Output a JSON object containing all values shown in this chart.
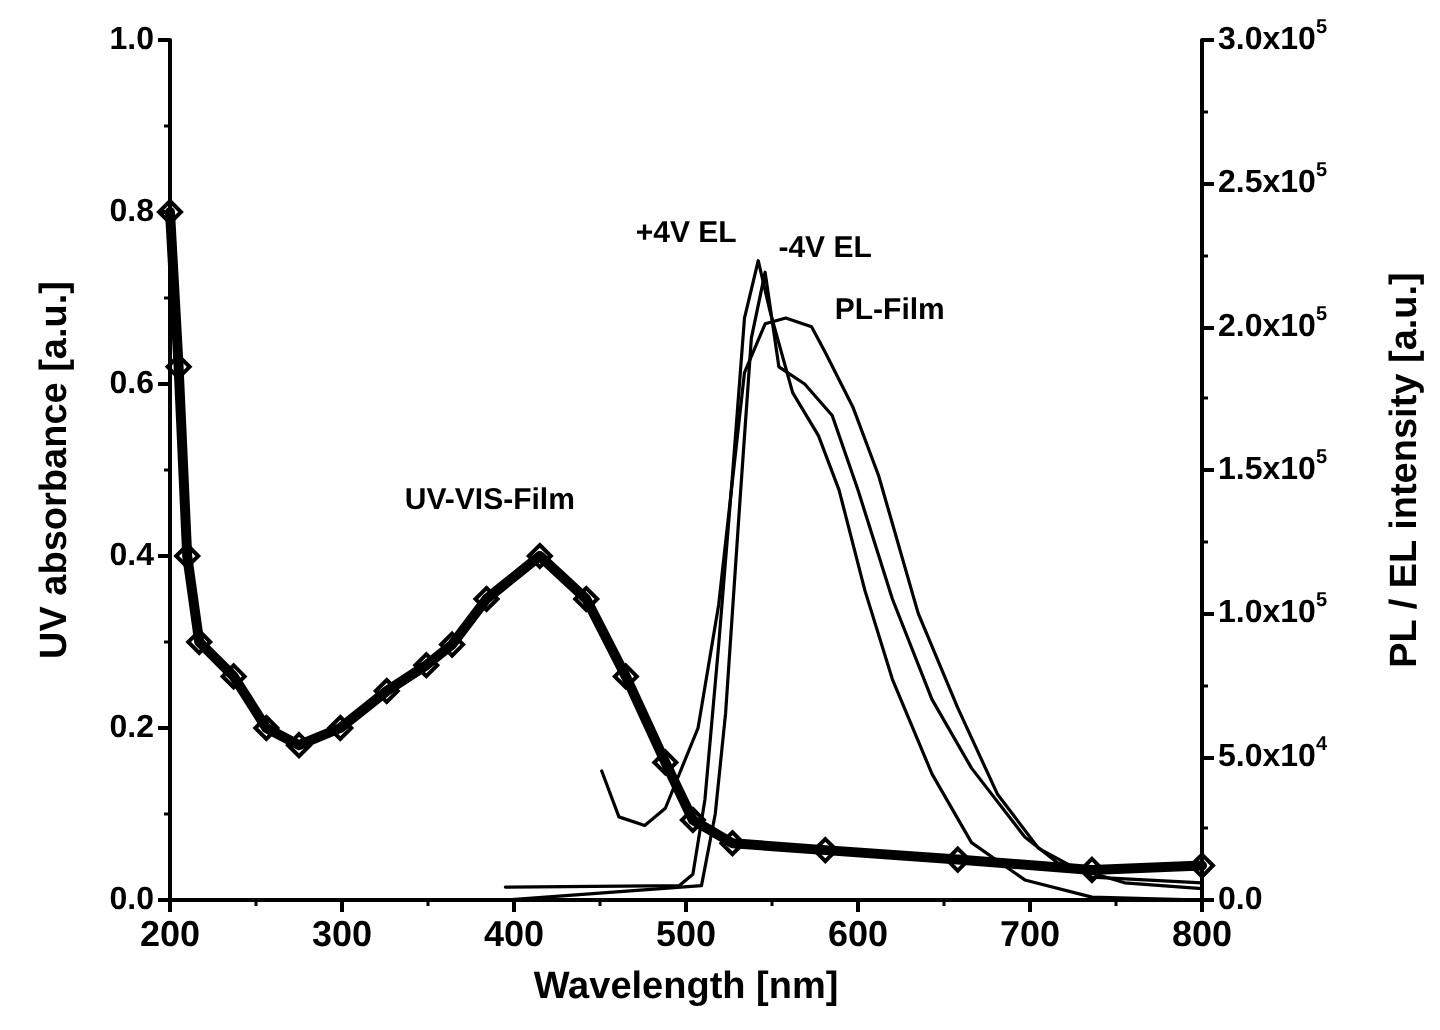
{
  "chart_data": {
    "type": "line",
    "xlabel": "Wavelength [nm]",
    "ylabel": "UV absorbance [a.u.]",
    "y2label": "PL / EL intensity [a.u.]",
    "xlim": [
      200,
      800
    ],
    "xticks": [
      200,
      300,
      400,
      500,
      600,
      700,
      800
    ],
    "ylim": [
      0,
      1
    ],
    "yticks": [
      {
        "value": 0,
        "label": "0.0"
      },
      {
        "value": 0.2,
        "label": "0.2"
      },
      {
        "value": 0.4,
        "label": "0.4"
      },
      {
        "value": 0.6,
        "label": "0.6"
      },
      {
        "value": 0.8,
        "label": "0.8"
      },
      {
        "value": 1,
        "label": "1.0"
      }
    ],
    "y2lim": [
      0,
      300000
    ],
    "y2ticks": [
      {
        "value": 0,
        "label": "0.0"
      },
      {
        "value": 50000,
        "label": "5.0x10$^{4}$"
      },
      {
        "value": 100000,
        "label": "1.0x10$^{5}$"
      },
      {
        "value": 150000,
        "label": "1.5x10$^{5}$"
      },
      {
        "value": 200000,
        "label": "2.0x10$^{5}$"
      },
      {
        "value": 250000,
        "label": "2.5x10$^{5}$"
      },
      {
        "value": 300000,
        "label": "3.0x10$^{5}$"
      }
    ],
    "grid": false,
    "legend": false,
    "marker": "none",
    "line_style": "solid",
    "series": [
      {
        "name": "UV-VIS-Film",
        "color": "#000000",
        "marker": "diamond",
        "x": [
          200,
          205,
          210,
          217,
          237,
          256,
          275,
          299,
          326,
          349,
          364,
          384,
          415,
          442,
          465,
          488,
          504,
          527,
          581,
          658,
          736,
          800
        ],
        "values": [
          0.8,
          0.62,
          0.4,
          0.3,
          0.26,
          0.2,
          0.18,
          0.2,
          0.243,
          0.273,
          0.297,
          0.35,
          0.4,
          0.35,
          0.26,
          0.16,
          0.093,
          0.066,
          0.058,
          0.047,
          0.035,
          0.04
        ]
      },
      {
        "name": "+4V EL",
        "color": "#000000",
        "axis": "y2",
        "x": [
          395,
          496,
          504,
          511,
          519,
          527,
          534,
          542,
          549,
          562,
          577,
          589,
          604,
          620,
          643,
          666,
          697,
          736,
          800
        ],
        "values": [
          4500,
          5000,
          9000,
          35000,
          89000,
          148000,
          203000,
          223000,
          205000,
          177000,
          162000,
          143000,
          108000,
          77000,
          44000,
          20000,
          7000,
          1000,
          0
        ]
      },
      {
        "name": "-4V EL",
        "color": "#000000",
        "axis": "y2",
        "x": [
          395,
          509,
          517,
          523,
          531,
          538,
          546,
          554,
          569,
          585,
          600,
          620,
          643,
          666,
          697,
          716,
          755,
          800
        ],
        "values": [
          0,
          5000,
          30000,
          65000,
          136000,
          196000,
          219000,
          186000,
          180000,
          169000,
          143000,
          105000,
          70000,
          46000,
          22000,
          13000,
          6000,
          4000
        ]
      },
      {
        "name": "PL-Film",
        "color": "#000000",
        "axis": "y2",
        "x": [
          451,
          461,
          476,
          488,
          507,
          519,
          534,
          546,
          558,
          573,
          581,
          597,
          612,
          635,
          658,
          681,
          705,
          736,
          800
        ],
        "values": [
          45000,
          29000,
          26000,
          32000,
          60000,
          103000,
          184000,
          201000,
          203000,
          200000,
          191000,
          172000,
          148000,
          100000,
          67000,
          37000,
          18000,
          8000,
          6000
        ]
      }
    ]
  }
}
